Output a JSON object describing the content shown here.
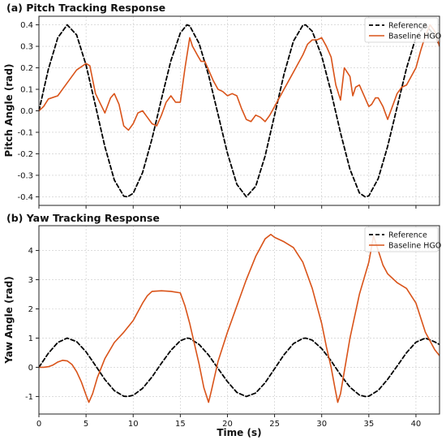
{
  "chart_data": [
    {
      "type": "line",
      "title": "(a) Pitch Tracking Response",
      "xlabel": "",
      "ylabel": "Pitch Angle (rad)",
      "xlim": [
        0,
        42.5
      ],
      "ylim": [
        -0.44,
        0.44
      ],
      "yticks": [
        "-0.4",
        "-0.3",
        "-0.2",
        "-0.1",
        "0.0",
        "0.1",
        "0.2",
        "0.3",
        "0.4"
      ],
      "ytick_values": [
        -0.4,
        -0.3,
        -0.2,
        -0.1,
        0.0,
        0.1,
        0.2,
        0.3,
        0.4
      ],
      "grid": true,
      "legend_position": "top-right",
      "series": [
        {
          "name": "Reference",
          "style": "dashed",
          "color": "#000000",
          "x": [
            0,
            1,
            2,
            3,
            4,
            5,
            6,
            7,
            8,
            9,
            9.4,
            10,
            11,
            12,
            13,
            14,
            15,
            15.7,
            16,
            17,
            18,
            19,
            20,
            21,
            22,
            22.0,
            23,
            24,
            25,
            26,
            27,
            28,
            28.3,
            29,
            30,
            31,
            32,
            33,
            34,
            34.6,
            35,
            36,
            37,
            38,
            39,
            40,
            41,
            42,
            42.5
          ],
          "y": [
            0.0,
            0.193,
            0.34,
            0.4,
            0.353,
            0.213,
            0.024,
            -0.167,
            -0.322,
            -0.397,
            -0.4,
            -0.384,
            -0.287,
            -0.13,
            0.055,
            0.233,
            0.362,
            0.4,
            0.395,
            0.313,
            0.166,
            -0.016,
            -0.197,
            -0.342,
            -0.4,
            -0.4,
            -0.351,
            -0.21,
            -0.02,
            0.17,
            0.324,
            0.398,
            0.4,
            0.37,
            0.255,
            0.087,
            -0.103,
            -0.272,
            -0.382,
            -0.4,
            -0.396,
            -0.315,
            -0.165,
            0.017,
            0.198,
            0.343,
            0.4,
            0.35,
            0.303
          ]
        },
        {
          "name": "Baseline HGO",
          "style": "solid",
          "color": "#d95319",
          "x": [
            0,
            0.5,
            1,
            2,
            3,
            4,
            5,
            5.4,
            6,
            7,
            7.6,
            8,
            8.5,
            9,
            9.5,
            10,
            10.5,
            11,
            11.5,
            12,
            12.5,
            13,
            13.5,
            14,
            14.5,
            15,
            15.5,
            16,
            16.3,
            16.8,
            17.2,
            17.6,
            18,
            18.5,
            19,
            19.5,
            20,
            20.5,
            21,
            21.5,
            22,
            22.5,
            23,
            23.5,
            24,
            24.5,
            25,
            25.5,
            26,
            26.5,
            27,
            27.5,
            28,
            28.5,
            29,
            29.5,
            30,
            30.5,
            31,
            31.5,
            32,
            32.4,
            33,
            33.3,
            33.6,
            34,
            34.5,
            35,
            35.3,
            35.7,
            36,
            36.5,
            37,
            37.5,
            38,
            38.5,
            39,
            39.5,
            40,
            40.5,
            41,
            41.5,
            42,
            42.5
          ],
          "y": [
            0.0,
            0.02,
            0.055,
            0.07,
            0.13,
            0.19,
            0.22,
            0.21,
            0.08,
            -0.01,
            0.06,
            0.08,
            0.03,
            -0.07,
            -0.09,
            -0.06,
            -0.01,
            0.0,
            -0.03,
            -0.06,
            -0.07,
            -0.02,
            0.04,
            0.07,
            0.04,
            0.04,
            0.2,
            0.34,
            0.3,
            0.26,
            0.23,
            0.23,
            0.19,
            0.14,
            0.1,
            0.09,
            0.07,
            0.08,
            0.07,
            0.01,
            -0.04,
            -0.05,
            -0.02,
            -0.03,
            -0.05,
            -0.02,
            0.02,
            0.06,
            0.1,
            0.14,
            0.18,
            0.22,
            0.26,
            0.31,
            0.33,
            0.33,
            0.34,
            0.3,
            0.25,
            0.12,
            0.05,
            0.2,
            0.16,
            0.07,
            0.11,
            0.12,
            0.07,
            0.02,
            0.03,
            0.06,
            0.06,
            0.02,
            -0.04,
            0.02,
            0.08,
            0.11,
            0.12,
            0.16,
            0.2,
            0.28,
            0.35,
            0.4,
            0.37,
            0.3
          ]
        }
      ]
    },
    {
      "type": "line",
      "title": "(b) Yaw Tracking Response",
      "xlabel": "Time (s)",
      "ylabel": "Yaw Angle (rad)",
      "xlim": [
        0,
        42.5
      ],
      "ylim": [
        -1.6,
        4.85
      ],
      "xticks": [
        "0",
        "5",
        "10",
        "15",
        "20",
        "25",
        "30",
        "35",
        "40"
      ],
      "xtick_values": [
        0,
        5,
        10,
        15,
        20,
        25,
        30,
        35,
        40
      ],
      "yticks": [
        "-1",
        "0",
        "1",
        "2",
        "3",
        "4"
      ],
      "ytick_values": [
        -1,
        0,
        1,
        2,
        3,
        4
      ],
      "grid": true,
      "legend_position": "top-right",
      "series": [
        {
          "name": "Reference",
          "style": "dashed",
          "color": "#000000",
          "x": [
            0,
            1,
            2,
            3,
            4,
            5,
            6,
            7,
            8,
            9,
            9.4,
            10,
            11,
            12,
            13,
            14,
            15,
            15.7,
            16,
            17,
            18,
            19,
            20,
            21,
            22,
            23,
            24,
            25,
            26,
            27,
            28,
            28.3,
            29,
            30,
            31,
            32,
            33,
            34,
            34.6,
            35,
            36,
            37,
            38,
            39,
            40,
            41,
            42,
            42.5
          ],
          "y": [
            0.0,
            0.48,
            0.85,
            1.0,
            0.88,
            0.53,
            0.06,
            -0.42,
            -0.8,
            -0.99,
            -1.0,
            -0.96,
            -0.72,
            -0.33,
            0.14,
            0.58,
            0.91,
            1.0,
            0.99,
            0.78,
            0.42,
            -0.04,
            -0.49,
            -0.86,
            -1.0,
            -0.88,
            -0.53,
            -0.05,
            0.43,
            0.81,
            0.99,
            1.0,
            0.93,
            0.64,
            0.22,
            -0.26,
            -0.68,
            -0.95,
            -1.0,
            -0.99,
            -0.79,
            -0.41,
            0.04,
            0.5,
            0.86,
            1.0,
            0.87,
            0.78
          ]
        },
        {
          "name": "Baseline HGO",
          "style": "solid",
          "color": "#d95319",
          "x": [
            0,
            0.5,
            1,
            1.5,
            2,
            2.5,
            3,
            3.5,
            4,
            4.5,
            5,
            5.3,
            5.7,
            6.2,
            7,
            8,
            9,
            10,
            11,
            11.5,
            12,
            13,
            14,
            15,
            15.5,
            16,
            16.5,
            17,
            17.5,
            18,
            18.3,
            19,
            20,
            21,
            22,
            23,
            24,
            24.6,
            25,
            26,
            27,
            28,
            29,
            30,
            30.5,
            31,
            31.4,
            31.7,
            32,
            33,
            34,
            35,
            35.5,
            36,
            36.5,
            37,
            38,
            39,
            40,
            41,
            41.5,
            42,
            42.5
          ],
          "y": [
            0.0,
            0.0,
            0.02,
            0.08,
            0.18,
            0.24,
            0.22,
            0.1,
            -0.15,
            -0.5,
            -0.95,
            -1.2,
            -0.9,
            -0.35,
            0.3,
            0.85,
            1.2,
            1.6,
            2.2,
            2.45,
            2.6,
            2.62,
            2.6,
            2.55,
            2.1,
            1.5,
            0.8,
            0.1,
            -0.7,
            -1.2,
            -0.8,
            0.2,
            1.2,
            2.1,
            3.0,
            3.8,
            4.4,
            4.55,
            4.45,
            4.3,
            4.1,
            3.6,
            2.7,
            1.5,
            0.7,
            0.0,
            -0.7,
            -1.2,
            -0.9,
            1.0,
            2.5,
            3.6,
            4.5,
            4.0,
            3.5,
            3.2,
            2.9,
            2.7,
            2.2,
            1.2,
            0.9,
            0.6,
            0.4
          ]
        }
      ]
    }
  ]
}
